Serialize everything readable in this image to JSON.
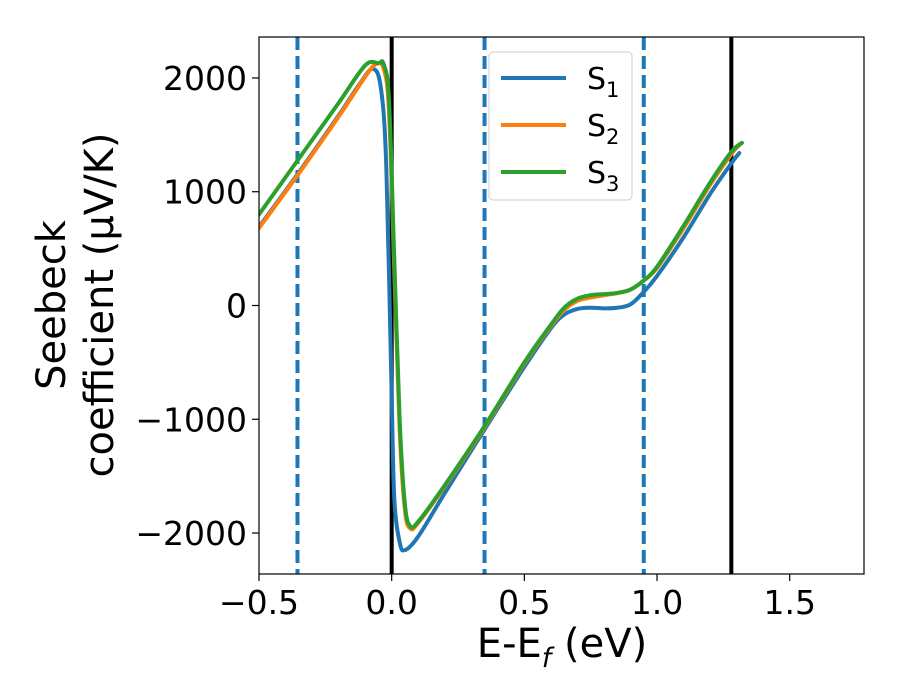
{
  "chart_data": {
    "type": "line",
    "xlabel": "E-E_f (eV)",
    "xlabel_main": "E-E",
    "xlabel_sub": "f",
    "xlabel_unit": " (eV)",
    "ylabel_line1": "Seebeck",
    "ylabel_line2": "coefficient  (μV/K)",
    "xlim": [
      -0.5,
      1.78
    ],
    "ylim": [
      -2360,
      2360
    ],
    "xticks": [
      -0.5,
      0.0,
      0.5,
      1.0,
      1.5
    ],
    "xtick_labels": [
      "−0.5",
      "0.0",
      "0.5",
      "1.0",
      "1.5"
    ],
    "yticks": [
      -2000,
      -1000,
      0,
      1000,
      2000
    ],
    "ytick_labels": [
      "−2000",
      "−1000",
      "0",
      "1000",
      "2000"
    ],
    "grid": false,
    "legend_position": "top-center",
    "vlines_dashed": [
      -0.355,
      0.35,
      0.95
    ],
    "vlines_solid": [
      0.0,
      1.28
    ],
    "vline_dashed_color": "#1f77b4",
    "vline_solid_color": "#000000",
    "series": [
      {
        "name": "S_1",
        "label_main": "S",
        "label_sub": "1",
        "color": "#1f77b4",
        "x": [
          -0.5,
          -0.35,
          -0.2,
          -0.12,
          -0.07,
          -0.04,
          -0.02,
          0.0,
          0.01,
          0.03,
          0.05,
          0.1,
          0.2,
          0.35,
          0.5,
          0.6,
          0.65,
          0.7,
          0.75,
          0.8,
          0.85,
          0.9,
          0.95,
          1.0,
          1.1,
          1.2,
          1.28,
          1.31
        ],
        "values": [
          690,
          1170,
          1670,
          1950,
          2080,
          1900,
          1200,
          -800,
          -1700,
          -2080,
          -2150,
          -2030,
          -1650,
          -1090,
          -540,
          -200,
          -80,
          -30,
          -20,
          -25,
          -20,
          10,
          120,
          260,
          600,
          980,
          1250,
          1340
        ]
      },
      {
        "name": "S_2",
        "label_main": "S",
        "label_sub": "2",
        "color": "#ff7f0e",
        "x": [
          -0.5,
          -0.35,
          -0.2,
          -0.1,
          -0.06,
          -0.03,
          -0.01,
          0.01,
          0.03,
          0.05,
          0.07,
          0.1,
          0.2,
          0.35,
          0.5,
          0.6,
          0.65,
          0.7,
          0.75,
          0.8,
          0.85,
          0.9,
          0.95,
          1.0,
          1.1,
          1.2,
          1.28,
          1.31
        ],
        "values": [
          680,
          1160,
          1660,
          2010,
          2120,
          2080,
          1700,
          300,
          -1100,
          -1800,
          -1960,
          -1910,
          -1590,
          -1070,
          -510,
          -180,
          -40,
          40,
          70,
          90,
          110,
          140,
          220,
          330,
          680,
          1060,
          1330,
          1410
        ]
      },
      {
        "name": "S_3",
        "label_main": "S",
        "label_sub": "3",
        "color": "#2ca02c",
        "x": [
          -0.5,
          -0.35,
          -0.2,
          -0.1,
          -0.05,
          -0.03,
          -0.01,
          0.01,
          0.03,
          0.05,
          0.07,
          0.1,
          0.2,
          0.35,
          0.5,
          0.6,
          0.65,
          0.7,
          0.75,
          0.8,
          0.85,
          0.9,
          0.95,
          1.0,
          1.1,
          1.2,
          1.28,
          1.32
        ],
        "values": [
          800,
          1290,
          1780,
          2110,
          2130,
          2120,
          1800,
          400,
          -1000,
          -1750,
          -1940,
          -1900,
          -1580,
          -1060,
          -500,
          -170,
          -20,
          60,
          90,
          100,
          110,
          140,
          220,
          340,
          700,
          1080,
          1350,
          1430
        ]
      }
    ]
  }
}
